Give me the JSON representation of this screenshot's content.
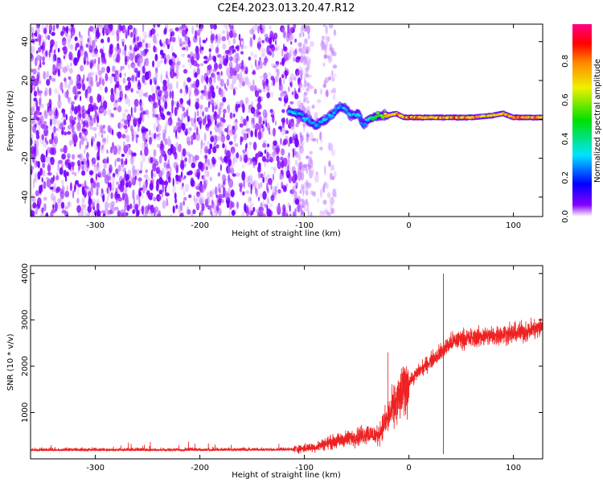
{
  "title": "C2E4.2023.013.20.47.R12",
  "chart_data": [
    {
      "type": "heatmap",
      "name": "spectrogram",
      "xlabel": "Height of straight line (km)",
      "ylabel": "Frequency (Hz)",
      "xlim": [
        -362,
        128
      ],
      "ylim": [
        -50,
        49
      ],
      "xticks": [
        -300,
        -200,
        -100,
        0,
        100
      ],
      "yticks": [
        -40,
        -20,
        0,
        20,
        40
      ],
      "noise_region_km": [
        -362,
        -105
      ],
      "noise_amplitude_range": [
        0.0,
        0.15
      ],
      "signal_ridge": {
        "x": [
          -115,
          -105,
          -95,
          -88,
          -80,
          -72,
          -66,
          -60,
          -55,
          -48,
          -44,
          -40,
          -30,
          -20,
          -12,
          -5,
          0,
          20,
          40,
          60,
          80,
          90,
          100,
          128
        ],
        "freq": [
          4,
          3,
          -1,
          -3,
          0,
          3,
          7,
          5,
          2,
          3,
          -3,
          0,
          2,
          2,
          3,
          1,
          1,
          1,
          1,
          1,
          2,
          3,
          1,
          1
        ],
        "amplitude": [
          0.35,
          0.35,
          0.3,
          0.3,
          0.35,
          0.35,
          0.3,
          0.35,
          0.35,
          0.35,
          0.3,
          0.4,
          0.6,
          0.85,
          0.9,
          0.9,
          0.9,
          0.9,
          0.9,
          0.9,
          0.85,
          0.9,
          0.9,
          0.9
        ]
      },
      "colorbar": {
        "label": "Normalized spectral amplitude",
        "ticks": [
          "0.0",
          "0.2",
          "0.4",
          "0.6",
          "0.8"
        ],
        "range": [
          0,
          0.99
        ],
        "colors": [
          "#ffffff",
          "#8800ff",
          "#0000ff",
          "#00e5ff",
          "#00e000",
          "#f0f000",
          "#ff8800",
          "#ff0000",
          "#ff0088"
        ]
      }
    },
    {
      "type": "line",
      "name": "snr",
      "xlabel": "Height of straight line (km)",
      "ylabel": "SNR (10 * v/v)",
      "xlim": [
        -362,
        128
      ],
      "ylim": [
        0,
        4170
      ],
      "xticks": [
        -300,
        -200,
        -100,
        0,
        100
      ],
      "yticks": [
        1000,
        2000,
        3000,
        4000
      ],
      "color": "#ee2222",
      "series": [
        {
          "name": "SNR",
          "x": [
            -362,
            -300,
            -200,
            -110,
            -90,
            -80,
            -70,
            -60,
            -50,
            -40,
            -30,
            -20,
            -10,
            0,
            10,
            20,
            30,
            33,
            40,
            50,
            60,
            70,
            80,
            90,
            100,
            110,
            120,
            128
          ],
          "y": [
            200,
            200,
            200,
            210,
            250,
            330,
            380,
            430,
            480,
            550,
            500,
            900,
            1300,
            1650,
            1900,
            2100,
            2300,
            2350,
            2500,
            2600,
            2600,
            2650,
            2650,
            2700,
            2700,
            2750,
            2800,
            2850
          ],
          "spike": {
            "x": 33,
            "max": 4000,
            "min": 100
          }
        }
      ]
    }
  ]
}
